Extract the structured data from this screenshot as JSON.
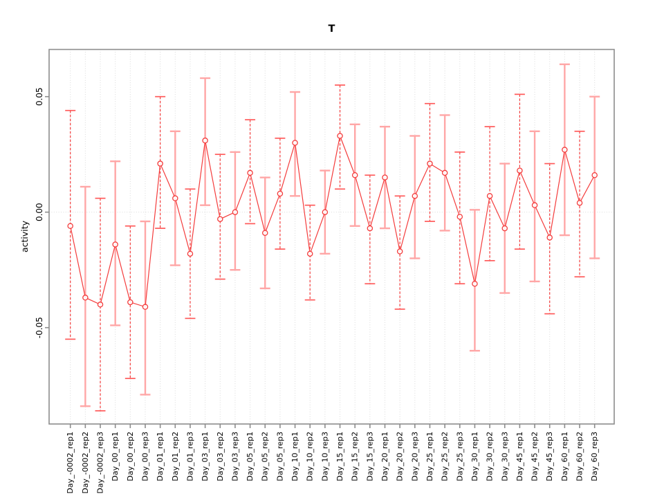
{
  "figure": {
    "title": "T",
    "y_axis_title": "activity"
  },
  "chart_data": {
    "type": "line",
    "subtype": "points-with-error-bars",
    "title": "T",
    "xlabel": "",
    "ylabel": "activity",
    "legend": "none",
    "grid": "dotted vertical gridline at every category; dotted horizontal reference line at y=0",
    "point_marker": "open-circle",
    "ylim": [
      -0.092,
      0.071
    ],
    "zero_line": 0,
    "yticks": [
      {
        "value": 0.05,
        "label": "0.05"
      },
      {
        "value": 0.0,
        "label": "0.00"
      },
      {
        "value": -0.05,
        "label": "-0.05"
      }
    ],
    "categories": [
      "Day_-0002_rep1",
      "Day_-0002_rep2",
      "Day_-0002_rep3",
      "Day_00_rep1",
      "Day_00_rep2",
      "Day_00_rep3",
      "Day_01_rep1",
      "Day_01_rep2",
      "Day_01_rep3",
      "Day_03_rep1",
      "Day_03_rep2",
      "Day_03_rep3",
      "Day_05_rep1",
      "Day_05_rep2",
      "Day_05_rep3",
      "Day_10_rep1",
      "Day_10_rep2",
      "Day_10_rep3",
      "Day_15_rep1",
      "Day_15_rep2",
      "Day_15_rep3",
      "Day_20_rep1",
      "Day_20_rep2",
      "Day_20_rep3",
      "Day_25_rep1",
      "Day_25_rep2",
      "Day_25_rep3",
      "Day_30_rep1",
      "Day_30_rep2",
      "Day_30_rep3",
      "Day_45_rep1",
      "Day_45_rep2",
      "Day_45_rep3",
      "Day_60_rep1",
      "Day_60_rep2",
      "Day_60_rep3"
    ],
    "series": [
      {
        "name": "activity mean",
        "values": [
          -0.006,
          -0.037,
          -0.04,
          -0.014,
          -0.039,
          -0.041,
          0.021,
          0.006,
          -0.018,
          0.031,
          -0.003,
          0.0,
          0.017,
          -0.009,
          0.008,
          0.03,
          -0.018,
          0.0,
          0.033,
          0.016,
          -0.007,
          0.015,
          -0.017,
          0.007,
          0.021,
          0.017,
          -0.002,
          -0.031,
          0.007,
          -0.007,
          0.018,
          0.003,
          -0.011,
          0.027,
          0.004,
          0.016
        ]
      }
    ],
    "error_upper": [
      0.044,
      0.011,
      0.006,
      0.022,
      -0.006,
      -0.004,
      0.05,
      0.035,
      0.01,
      0.058,
      0.025,
      0.026,
      0.04,
      0.015,
      0.032,
      0.052,
      0.003,
      0.018,
      0.055,
      0.038,
      0.016,
      0.037,
      0.007,
      0.033,
      0.047,
      0.042,
      0.026,
      0.001,
      0.037,
      0.021,
      0.051,
      0.035,
      0.021,
      0.064,
      0.035,
      0.05
    ],
    "error_lower": [
      -0.055,
      -0.084,
      -0.086,
      -0.049,
      -0.072,
      -0.079,
      -0.007,
      -0.023,
      -0.046,
      0.003,
      -0.029,
      -0.025,
      -0.005,
      -0.033,
      -0.016,
      0.007,
      -0.038,
      -0.018,
      0.01,
      -0.006,
      -0.031,
      -0.007,
      -0.042,
      -0.02,
      -0.004,
      -0.008,
      -0.031,
      -0.06,
      -0.021,
      -0.035,
      -0.016,
      -0.03,
      -0.044,
      -0.01,
      -0.028,
      -0.02
    ],
    "colors": {
      "series": "#f43b3b",
      "error_light": "#ffa6a6",
      "error_cap": "#ff5a5a",
      "grid": "#d9d9d9",
      "frame": "#8c8c8c",
      "text": "#000000"
    }
  }
}
